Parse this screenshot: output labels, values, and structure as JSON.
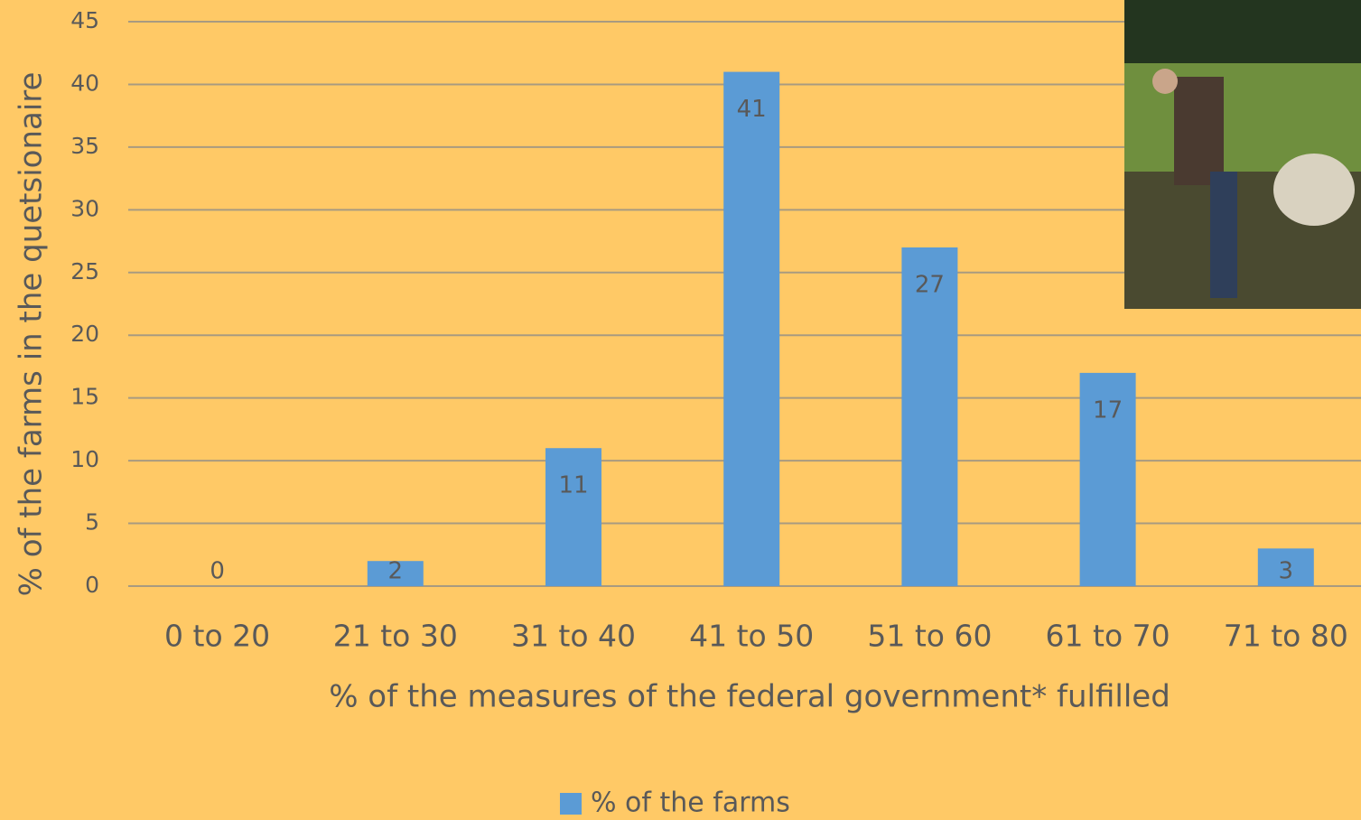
{
  "chart_data": {
    "type": "bar",
    "x_label": "% of the measures of the federal government* fulfilled",
    "y_label": "% of the farms in the quetsionaire",
    "categories": [
      "0 to 20",
      "21 to 30",
      "31 to 40",
      "41 to 50",
      "51 to 60",
      "61 to 70",
      "71 to 80"
    ],
    "series": [
      {
        "name": "% of the farms",
        "color": "#5B9BD5",
        "values": [
          0,
          2,
          11,
          41,
          27,
          17,
          3
        ]
      }
    ],
    "ylim": [
      0,
      45
    ],
    "yticks": [
      0,
      5,
      10,
      15,
      20,
      25,
      30,
      35,
      40,
      45
    ],
    "grid": true,
    "legend": "bottom"
  }
}
